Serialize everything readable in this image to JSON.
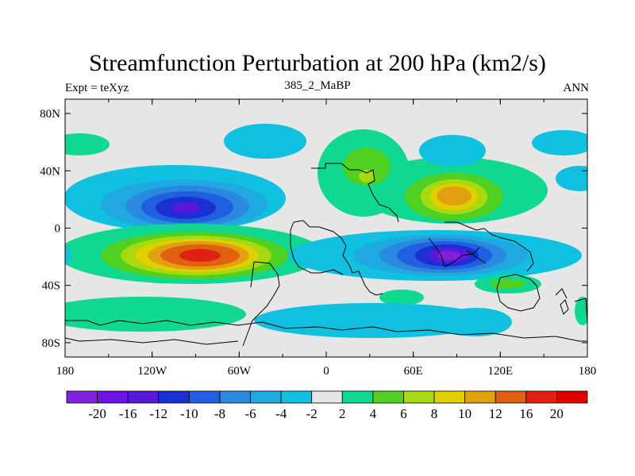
{
  "title": "Streamfunction Perturbation at 200 hPa (km2/s)",
  "left_label": "Expt = teXyz",
  "center_label": "385_2_MaBP",
  "right_label": "ANN",
  "map": {
    "lat_ticks": [
      "80N",
      "40N",
      "0",
      "40S",
      "80S"
    ],
    "lon_ticks": [
      "180",
      "120W",
      "60W",
      "0",
      "60E",
      "120E",
      "180"
    ],
    "background_color": "#e6e6e6"
  },
  "colorbar": {
    "labels": [
      "-20",
      "-16",
      "-12",
      "-10",
      "-8",
      "-6",
      "-4",
      "-2",
      "2",
      "4",
      "6",
      "8",
      "10",
      "12",
      "16",
      "20"
    ],
    "colors": [
      "#8020e0",
      "#7010e8",
      "#5a18d8",
      "#1a30d0",
      "#2060e0",
      "#2a88e0",
      "#20a8e0",
      "#10c0e0",
      "#e6e6e6",
      "#10d890",
      "#50d020",
      "#a8d810",
      "#e0d000",
      "#e0a010",
      "#e06010",
      "#e02010",
      "#e00000"
    ]
  }
}
